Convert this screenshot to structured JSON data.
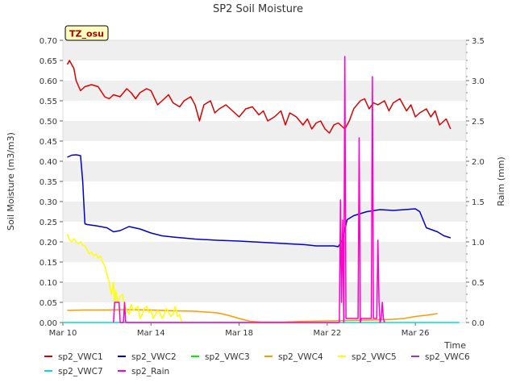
{
  "chart_data": {
    "type": "line",
    "title": "SP2 Soil Moisture",
    "xlabel": "Time",
    "ylabel": "Soil Moisture (m3/m3)",
    "y2label": "Raim (mm)",
    "site_badge": "TZ_osu",
    "xlim": [
      0,
      18.3
    ],
    "ylim": [
      0,
      0.7
    ],
    "y2lim": [
      0,
      3.5
    ],
    "x_ticks": [
      {
        "x": 0,
        "label": "Mar 10"
      },
      {
        "x": 4,
        "label": "Mar 14"
      },
      {
        "x": 8,
        "label": "Mar 18"
      },
      {
        "x": 12,
        "label": "Mar 22"
      },
      {
        "x": 16,
        "label": "Mar 26"
      }
    ],
    "y_ticks": [
      "0.00",
      "0.05",
      "0.10",
      "0.15",
      "0.20",
      "0.25",
      "0.30",
      "0.35",
      "0.40",
      "0.45",
      "0.50",
      "0.55",
      "0.60",
      "0.65",
      "0.70"
    ],
    "y2_ticks": [
      "0.0",
      "0.5",
      "1.0",
      "1.5",
      "2.0",
      "2.5",
      "3.0",
      "3.5"
    ],
    "grid": "horizontal bands",
    "legend_position": "bottom",
    "series": [
      {
        "name": "sp2_VWC1",
        "color": "#dd0000",
        "axis": "left",
        "x": [
          0.2,
          0.3,
          0.4,
          0.5,
          0.6,
          0.8,
          1.0,
          1.3,
          1.6,
          1.9,
          2.1,
          2.3,
          2.6,
          2.9,
          3.1,
          3.3,
          3.5,
          3.8,
          4.0,
          4.3,
          4.5,
          4.8,
          5.0,
          5.3,
          5.5,
          5.8,
          6.0,
          6.1,
          6.2,
          6.4,
          6.7,
          6.9,
          7.1,
          7.4,
          7.7,
          8.0,
          8.3,
          8.6,
          8.9,
          9.1,
          9.3,
          9.6,
          9.9,
          10.1,
          10.3,
          10.6,
          10.9,
          11.1,
          11.3,
          11.5,
          11.7,
          11.9,
          12.1,
          12.3,
          12.5,
          12.8,
          13.0,
          13.2,
          13.5,
          13.7,
          13.9,
          14.1,
          14.3,
          14.6,
          14.8,
          15.0,
          15.3,
          15.6,
          15.8,
          16.0,
          16.2,
          16.5,
          16.7,
          16.9,
          17.1,
          17.4,
          17.6
        ],
        "values": [
          0.64,
          0.65,
          0.64,
          0.63,
          0.6,
          0.575,
          0.585,
          0.59,
          0.585,
          0.56,
          0.555,
          0.565,
          0.56,
          0.58,
          0.57,
          0.555,
          0.57,
          0.58,
          0.575,
          0.54,
          0.55,
          0.565,
          0.545,
          0.535,
          0.55,
          0.56,
          0.54,
          0.52,
          0.5,
          0.54,
          0.55,
          0.52,
          0.53,
          0.54,
          0.525,
          0.51,
          0.53,
          0.535,
          0.515,
          0.525,
          0.5,
          0.51,
          0.525,
          0.49,
          0.52,
          0.51,
          0.49,
          0.505,
          0.48,
          0.495,
          0.5,
          0.48,
          0.47,
          0.49,
          0.495,
          0.48,
          0.5,
          0.53,
          0.55,
          0.555,
          0.53,
          0.545,
          0.54,
          0.55,
          0.525,
          0.545,
          0.555,
          0.525,
          0.54,
          0.51,
          0.52,
          0.53,
          0.51,
          0.525,
          0.49,
          0.505,
          0.48
        ]
      },
      {
        "name": "sp2_VWC2",
        "color": "#0000cc",
        "axis": "left",
        "x": [
          0.2,
          0.4,
          0.6,
          0.8,
          0.9,
          1.0,
          1.1,
          1.5,
          2.0,
          2.3,
          2.6,
          3.0,
          3.5,
          4.0,
          4.5,
          5.0,
          6.0,
          7.0,
          8.0,
          9.0,
          10.0,
          11.0,
          11.5,
          12.0,
          12.3,
          12.5,
          12.7,
          12.9,
          13.2,
          13.8,
          14.4,
          15.0,
          15.5,
          16.0,
          16.2,
          16.5,
          17.0,
          17.3,
          17.6
        ],
        "values": [
          0.41,
          0.415,
          0.416,
          0.414,
          0.35,
          0.245,
          0.243,
          0.24,
          0.235,
          0.225,
          0.228,
          0.238,
          0.232,
          0.222,
          0.215,
          0.212,
          0.207,
          0.204,
          0.202,
          0.199,
          0.196,
          0.193,
          0.19,
          0.19,
          0.19,
          0.188,
          0.205,
          0.255,
          0.265,
          0.275,
          0.28,
          0.278,
          0.28,
          0.282,
          0.275,
          0.235,
          0.225,
          0.215,
          0.21
        ]
      },
      {
        "name": "sp2_VWC3",
        "color": "#00ee00",
        "axis": "left",
        "x": [],
        "values": []
      },
      {
        "name": "sp2_VWC4",
        "color": "#ff9900",
        "axis": "left",
        "x": [
          0.2,
          1.0,
          2.0,
          3.0,
          4.0,
          5.0,
          6.0,
          7.0,
          7.5,
          8.0,
          8.5,
          9.0,
          10.0,
          11.0,
          12.0,
          13.0,
          14.0,
          15.0,
          15.5,
          16.0,
          16.5,
          17.0
        ],
        "values": [
          0.03,
          0.031,
          0.031,
          0.032,
          0.031,
          0.029,
          0.028,
          0.024,
          0.018,
          0.01,
          0.003,
          0.001,
          0.001,
          0.003,
          0.004,
          0.005,
          0.006,
          0.008,
          0.01,
          0.015,
          0.018,
          0.022
        ]
      },
      {
        "name": "sp2_VWC5",
        "color": "#ffff00",
        "axis": "left",
        "x": [
          0.2,
          0.3,
          0.4,
          0.5,
          0.6,
          0.7,
          0.8,
          0.9,
          1.0,
          1.1,
          1.2,
          1.3,
          1.4,
          1.5,
          1.6,
          1.7,
          1.8,
          1.9,
          2.0,
          2.1,
          2.2,
          2.3,
          2.35,
          2.4,
          2.5,
          2.6,
          2.7,
          2.8,
          2.9,
          3.0,
          3.1,
          3.2,
          3.3,
          3.4,
          3.5,
          3.6,
          3.7,
          3.8,
          3.9,
          4.0,
          4.1,
          4.2,
          4.3,
          4.4,
          4.5,
          4.6,
          4.7,
          4.8,
          4.9,
          5.0,
          5.1,
          5.2,
          5.3,
          5.4
        ],
        "values": [
          0.22,
          0.205,
          0.2,
          0.208,
          0.2,
          0.195,
          0.2,
          0.192,
          0.19,
          0.18,
          0.17,
          0.175,
          0.165,
          0.17,
          0.16,
          0.165,
          0.15,
          0.14,
          0.12,
          0.1,
          0.07,
          0.1,
          0.04,
          0.08,
          0.05,
          0.065,
          0.07,
          0.045,
          0.03,
          0.02,
          0.045,
          0.03,
          0.035,
          0.04,
          0.01,
          0.02,
          0.035,
          0.04,
          0.025,
          0.03,
          0.01,
          0.02,
          0.03,
          0.025,
          0.01,
          0.02,
          0.035,
          0.025,
          0.015,
          0.02,
          0.04,
          0.015,
          0.02,
          0.0
        ]
      },
      {
        "name": "sp2_VWC6",
        "color": "#9933cc",
        "axis": "left",
        "x": [],
        "values": []
      },
      {
        "name": "sp2_VWC7",
        "color": "#00dddd",
        "axis": "left",
        "x": [
          0,
          18
        ],
        "values": [
          0.0,
          0.0
        ]
      },
      {
        "name": "sp2_Rain",
        "color": "#ff00cc",
        "axis": "right",
        "x": [
          2.3,
          2.35,
          2.4,
          2.45,
          2.5,
          2.55,
          2.6,
          2.75,
          2.8,
          2.85,
          12.55,
          12.6,
          12.65,
          12.7,
          12.75,
          12.8,
          12.85,
          12.9,
          12.95,
          13.0,
          13.05,
          13.1,
          13.15,
          13.2,
          13.25,
          13.3,
          13.35,
          13.4,
          13.45,
          13.5,
          13.55,
          13.6,
          13.65,
          13.7,
          13.75,
          13.8,
          13.85,
          13.9,
          13.95,
          14.0,
          14.05,
          14.1,
          14.15,
          14.2,
          14.25,
          14.3,
          14.35,
          14.4,
          14.45,
          14.5,
          14.55,
          14.6
        ],
        "values": [
          0,
          0.25,
          0.25,
          0.25,
          0.25,
          0.25,
          0,
          0,
          0.25,
          0,
          0,
          1.52,
          0.25,
          1.27,
          0,
          3.3,
          0.05,
          0.05,
          0.05,
          0.05,
          0.05,
          0.05,
          0.05,
          0.05,
          0.05,
          0.05,
          0.05,
          0.05,
          2.29,
          0,
          0.05,
          0.05,
          0.05,
          0.05,
          0.05,
          0.05,
          0.05,
          0.05,
          0.05,
          0.05,
          3.05,
          0.05,
          0.05,
          0.05,
          0.05,
          1.02,
          0.25,
          0,
          0.05,
          0.25,
          0.05,
          0
        ]
      }
    ]
  }
}
